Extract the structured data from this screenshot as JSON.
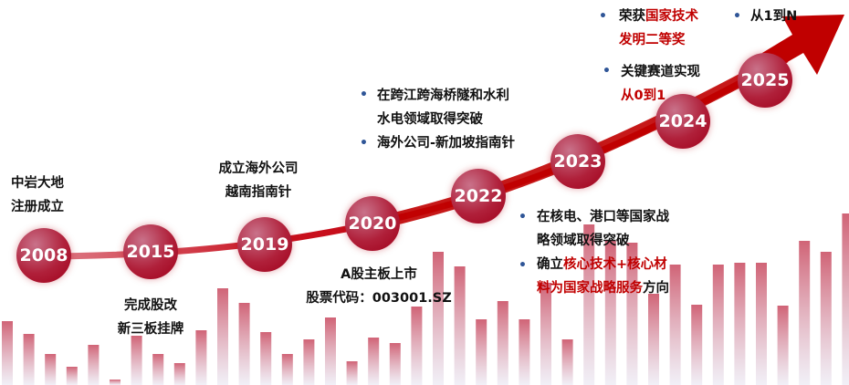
{
  "colors": {
    "accent": "#c00000",
    "bullet": "#2f5597",
    "text": "#111111"
  },
  "milestones": [
    {
      "year": "2008",
      "lines": [
        "中岩大地",
        "注册成立"
      ]
    },
    {
      "year": "2015",
      "lines": [
        "完成股改",
        "新三板挂牌"
      ]
    },
    {
      "year": "2019",
      "lines": [
        "成立海外公司",
        "越南指南针"
      ]
    },
    {
      "year": "2020",
      "lines": [
        "A股主板上市",
        "股票代码：003001.SZ"
      ]
    },
    {
      "year": "2022",
      "bullets": [
        "在跨江跨海桥隧和水利",
        "水电领域取得突破",
        "海外公司-新加坡指南针"
      ]
    },
    {
      "year": "2023",
      "bullets": {
        "b1": [
          "在核电、港口等国家战",
          "略领域取得突破"
        ],
        "b2_a": "确立",
        "b2_b": "核心技术+核心材",
        "b2_c": "料为国家战略服务",
        "b2_d": "方向"
      }
    },
    {
      "year": "2024",
      "bullets": {
        "l1": "关键赛道实现",
        "l2": "从0到1"
      }
    },
    {
      "year": "2025",
      "bullets": {
        "a1": "荣获",
        "a2": "国家技术",
        "a3": "发明二等奖",
        "b": "从1到N"
      }
    }
  ],
  "bullet_glyph": "•"
}
